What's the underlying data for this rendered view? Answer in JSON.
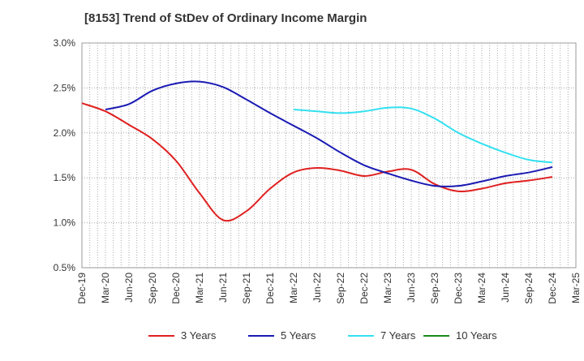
{
  "chart_data": {
    "type": "line",
    "title": "[8153]  Trend of StDev of Ordinary Income Margin",
    "xlabel": "",
    "ylabel": "",
    "ylim": [
      0.5,
      3.0
    ],
    "y_ticks": [
      "0.5%",
      "1.0%",
      "1.5%",
      "2.0%",
      "2.5%",
      "3.0%"
    ],
    "y_tick_values": [
      0.5,
      1.0,
      1.5,
      2.0,
      2.5,
      3.0
    ],
    "x_tick_labels": [
      "Dec-19",
      "Mar-20",
      "Jun-20",
      "Sep-20",
      "Dec-20",
      "Mar-21",
      "Jun-21",
      "Sep-21",
      "Dec-21",
      "Mar-22",
      "Jun-22",
      "Sep-22",
      "Dec-22",
      "Mar-23",
      "Jun-23",
      "Sep-23",
      "Dec-23",
      "Mar-24",
      "Jun-24",
      "Sep-24",
      "Dec-24",
      "Mar-25"
    ],
    "grid": true,
    "legend_position": "bottom",
    "series": [
      {
        "name": "3 Years",
        "color": "#e02020",
        "values": [
          [
            "Dec-19",
            2.33
          ],
          [
            "Mar-20",
            2.24
          ],
          [
            "Jun-20",
            2.09
          ],
          [
            "Sep-20",
            1.93
          ],
          [
            "Dec-20",
            1.69
          ],
          [
            "Mar-21",
            1.33
          ],
          [
            "Jun-21",
            1.03
          ],
          [
            "Sep-21",
            1.13
          ],
          [
            "Dec-21",
            1.38
          ],
          [
            "Mar-22",
            1.56
          ],
          [
            "Jun-22",
            1.61
          ],
          [
            "Sep-22",
            1.58
          ],
          [
            "Dec-22",
            1.52
          ],
          [
            "Mar-23",
            1.57
          ],
          [
            "Jun-23",
            1.59
          ],
          [
            "Sep-23",
            1.43
          ],
          [
            "Dec-23",
            1.35
          ],
          [
            "Mar-24",
            1.38
          ],
          [
            "Jun-24",
            1.44
          ],
          [
            "Sep-24",
            1.47
          ],
          [
            "Dec-24",
            1.51
          ]
        ]
      },
      {
        "name": "5 Years",
        "color": "#1a1ab4",
        "values": [
          [
            "Mar-20",
            2.26
          ],
          [
            "Jun-20",
            2.32
          ],
          [
            "Sep-20",
            2.47
          ],
          [
            "Dec-20",
            2.55
          ],
          [
            "Mar-21",
            2.57
          ],
          [
            "Jun-21",
            2.51
          ],
          [
            "Sep-21",
            2.37
          ],
          [
            "Dec-21",
            2.22
          ],
          [
            "Mar-22",
            2.08
          ],
          [
            "Jun-22",
            1.94
          ],
          [
            "Sep-22",
            1.78
          ],
          [
            "Dec-22",
            1.64
          ],
          [
            "Mar-23",
            1.55
          ],
          [
            "Jun-23",
            1.47
          ],
          [
            "Sep-23",
            1.41
          ],
          [
            "Dec-23",
            1.41
          ],
          [
            "Mar-24",
            1.46
          ],
          [
            "Jun-24",
            1.52
          ],
          [
            "Sep-24",
            1.56
          ],
          [
            "Dec-24",
            1.62
          ]
        ]
      },
      {
        "name": "7 Years",
        "color": "#33e0f0",
        "values": [
          [
            "Mar-22",
            2.26
          ],
          [
            "Jun-22",
            2.24
          ],
          [
            "Sep-22",
            2.22
          ],
          [
            "Dec-22",
            2.24
          ],
          [
            "Mar-23",
            2.28
          ],
          [
            "Jun-23",
            2.27
          ],
          [
            "Sep-23",
            2.16
          ],
          [
            "Dec-23",
            2.0
          ],
          [
            "Mar-24",
            1.88
          ],
          [
            "Jun-24",
            1.78
          ],
          [
            "Sep-24",
            1.7
          ],
          [
            "Dec-24",
            1.67
          ]
        ]
      },
      {
        "name": "10 Years",
        "color": "#1a8a1a",
        "values": []
      }
    ]
  }
}
